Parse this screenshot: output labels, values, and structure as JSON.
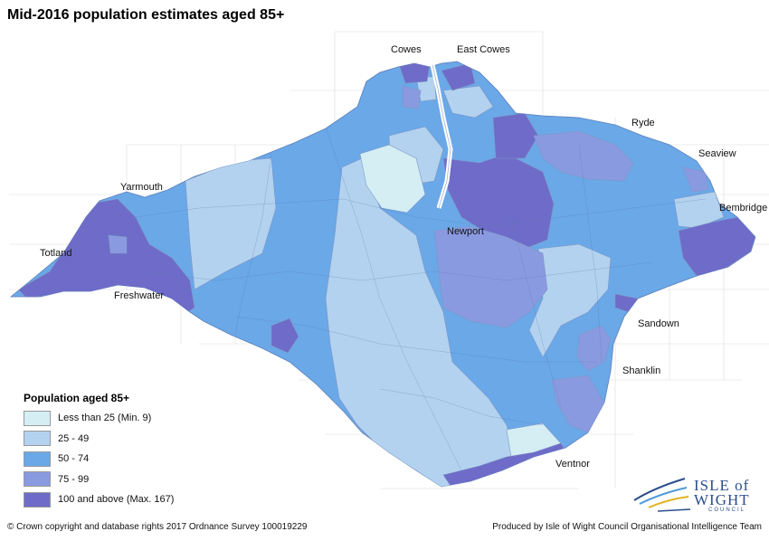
{
  "title": "Mid-2016 population estimates aged 85+",
  "places": {
    "cowes": "Cowes",
    "east_cowes": "East Cowes",
    "ryde": "Ryde",
    "seaview": "Seaview",
    "yarmouth": "Yarmouth",
    "bembridge": "Bembridge",
    "newport": "Newport",
    "totland": "Totland",
    "freshwater": "Freshwater",
    "sandown": "Sandown",
    "shanklin": "Shanklin",
    "ventnor": "Ventnor"
  },
  "legend": {
    "title": "Population aged 85+",
    "items": [
      {
        "label": "Less than 25 (Min. 9)",
        "color": "#d4eef4"
      },
      {
        "label": "25 - 49",
        "color": "#b3d2ef"
      },
      {
        "label": "50 - 74",
        "color": "#6aa8e8"
      },
      {
        "label": "75 - 99",
        "color": "#8a9ae0"
      },
      {
        "label": "100 and above (Max. 167)",
        "color": "#6e6cc8"
      }
    ]
  },
  "footer": {
    "copyright": "© Crown copyright and database rights 2017 Ordnance Survey 100019229",
    "credit": "Produced by Isle of Wight Council Organisational Intelligence Team"
  },
  "logo": {
    "line1": "ISLE of",
    "line2": "WIGHT",
    "line3": "COUNCIL"
  }
}
